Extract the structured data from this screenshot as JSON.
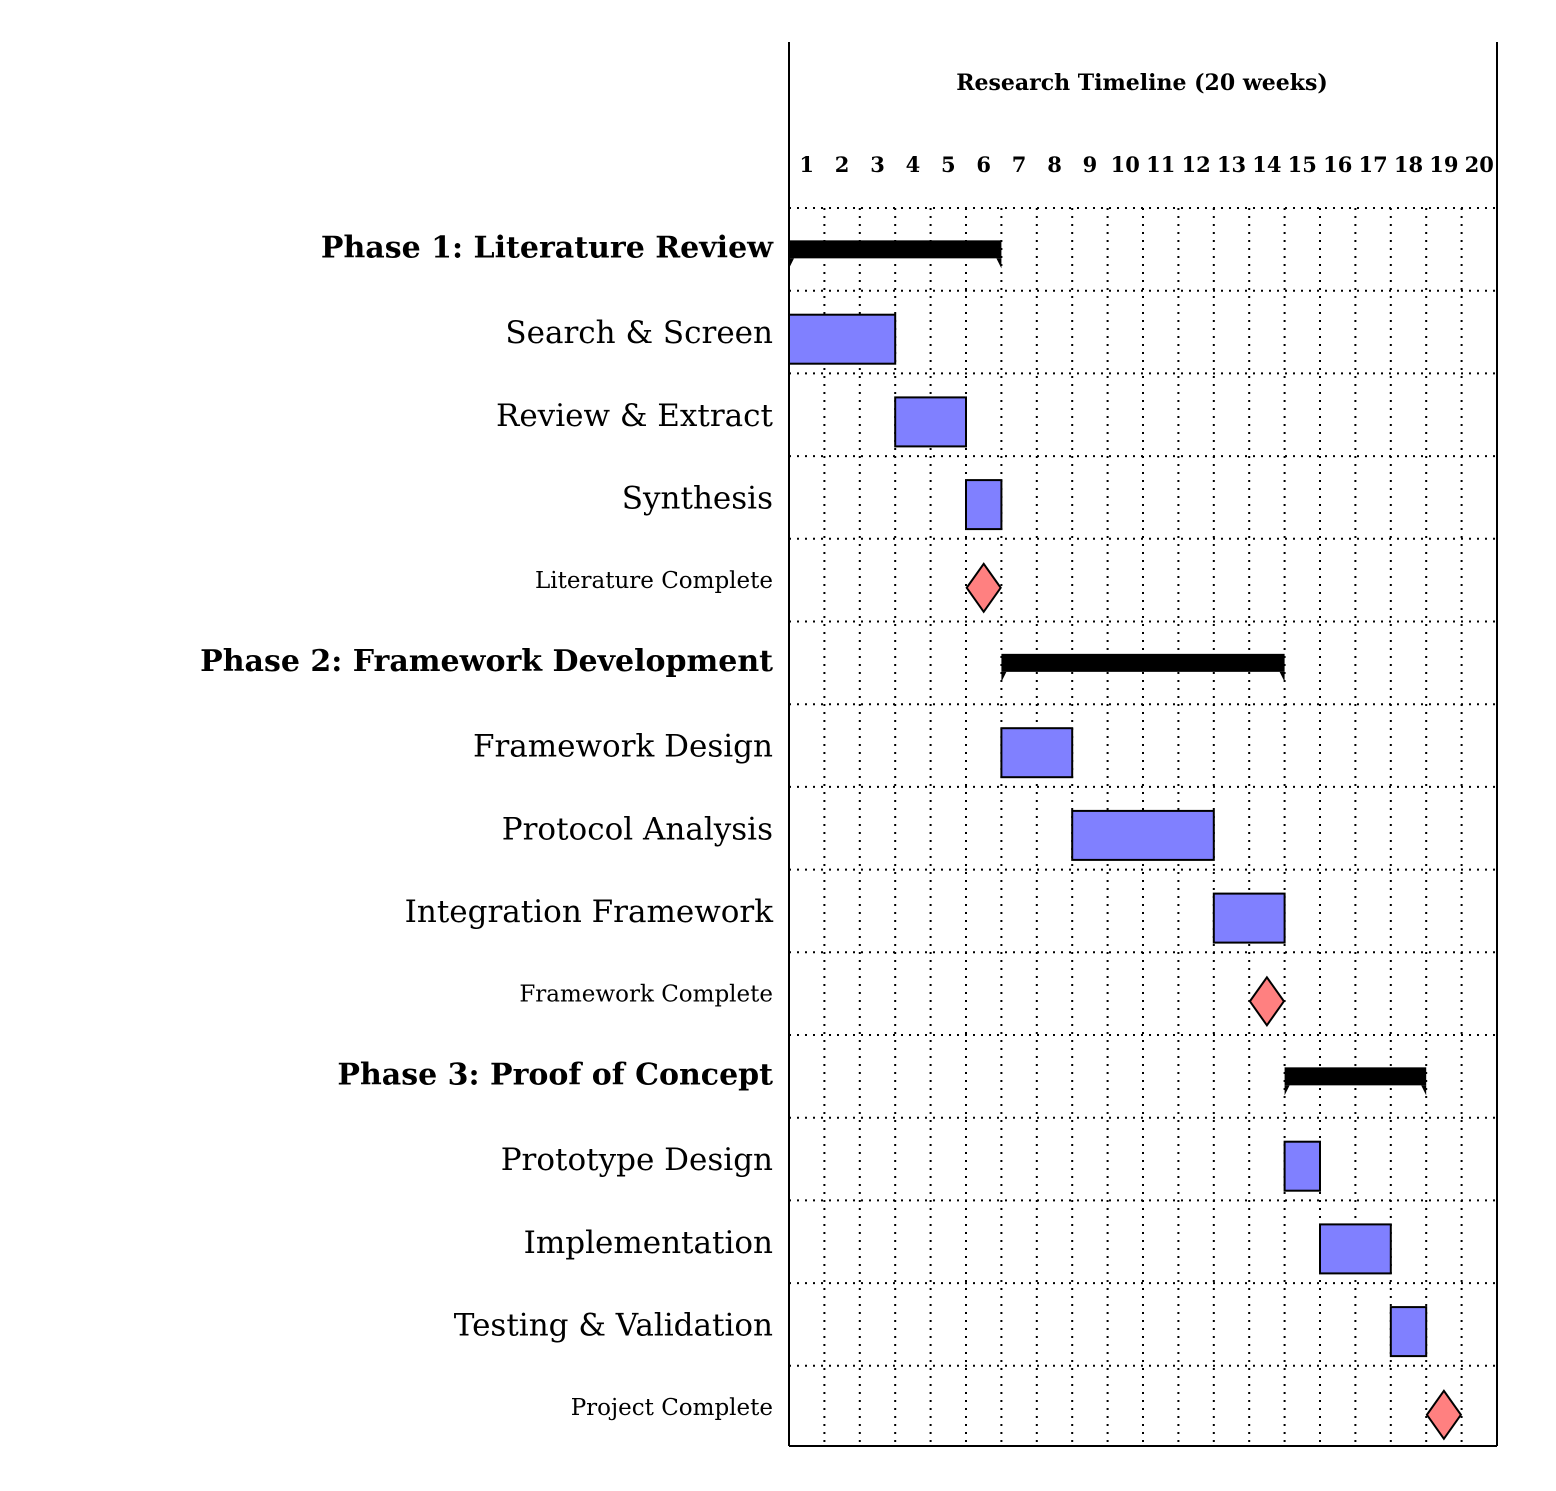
{
  "chart_data": {
    "type": "gantt",
    "title": "Research Timeline (20 weeks)",
    "x_unit": "week",
    "x_range": [
      1,
      20
    ],
    "ticks": [
      "1",
      "2",
      "3",
      "4",
      "5",
      "6",
      "7",
      "8",
      "9",
      "10",
      "11",
      "12",
      "13",
      "14",
      "15",
      "16",
      "17",
      "18",
      "19",
      "20"
    ],
    "grid": true,
    "rows": [
      {
        "kind": "group",
        "label": "Phase 1: Literature Review",
        "start": 1,
        "end": 6
      },
      {
        "kind": "task",
        "label": "Search & Screen",
        "start": 1,
        "end": 3
      },
      {
        "kind": "task",
        "label": "Review & Extract",
        "start": 4,
        "end": 5
      },
      {
        "kind": "task",
        "label": "Synthesis",
        "start": 6,
        "end": 6
      },
      {
        "kind": "milestone",
        "label": "Literature Complete",
        "at": 6
      },
      {
        "kind": "group",
        "label": "Phase 2: Framework Development",
        "start": 7,
        "end": 14
      },
      {
        "kind": "task",
        "label": "Framework Design",
        "start": 7,
        "end": 8
      },
      {
        "kind": "task",
        "label": "Protocol Analysis",
        "start": 9,
        "end": 12
      },
      {
        "kind": "task",
        "label": "Integration Framework",
        "start": 13,
        "end": 14
      },
      {
        "kind": "milestone",
        "label": "Framework Complete",
        "at": 14
      },
      {
        "kind": "group",
        "label": "Phase 3: Proof of Concept",
        "start": 15,
        "end": 18
      },
      {
        "kind": "task",
        "label": "Prototype Design",
        "start": 15,
        "end": 15
      },
      {
        "kind": "task",
        "label": "Implementation",
        "start": 16,
        "end": 17
      },
      {
        "kind": "task",
        "label": "Testing & Validation",
        "start": 18,
        "end": 18
      },
      {
        "kind": "milestone",
        "label": "Project Complete",
        "at": 19
      }
    ],
    "colors": {
      "task_fill": "#8080ff",
      "milestone_fill": "#ff8080",
      "group_fill": "#000000",
      "grid": "#000000"
    }
  }
}
